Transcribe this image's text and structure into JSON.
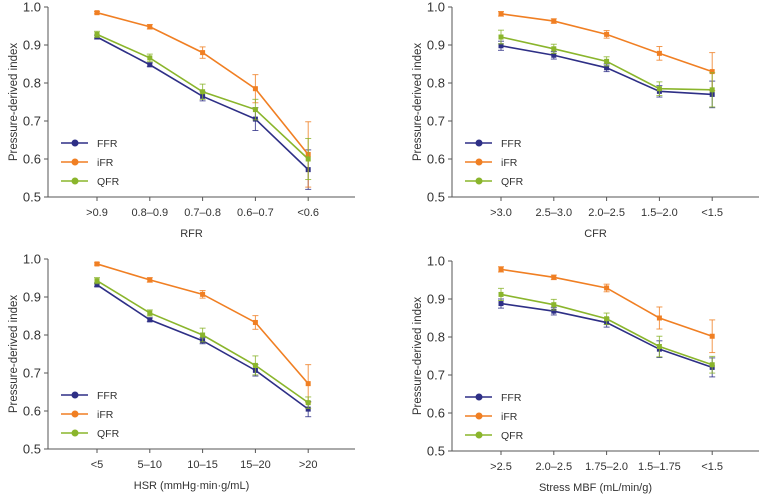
{
  "chart_data": [
    {
      "type": "line",
      "xlabel": "RFR",
      "ylabel": "Pressure-derived index",
      "ylim": [
        0.5,
        1.0
      ],
      "yticks": [
        "0.5",
        "0.6",
        "0.7",
        "0.8",
        "0.9",
        "1.0"
      ],
      "categories": [
        ">0.9",
        "0.8–0.9",
        "0.7–0.8",
        "0.6–0.7",
        "<0.6"
      ],
      "legend": "bottom-left",
      "series": [
        {
          "name": "FFR",
          "values": [
            0.921,
            0.848,
            0.765,
            0.705,
            0.572
          ],
          "errors": [
            0.005,
            0.005,
            0.012,
            0.03,
            0.052
          ]
        },
        {
          "name": "iFR",
          "values": [
            0.985,
            0.948,
            0.88,
            0.785,
            0.612
          ],
          "errors": [
            0.003,
            0.006,
            0.015,
            0.037,
            0.086
          ]
        },
        {
          "name": "QFR",
          "values": [
            0.928,
            0.866,
            0.777,
            0.73,
            0.6
          ],
          "errors": [
            0.008,
            0.01,
            0.02,
            0.027,
            0.054
          ]
        }
      ]
    },
    {
      "type": "line",
      "xlabel": "CFR",
      "ylabel": "Pressure-derived index",
      "ylim": [
        0.5,
        1.0
      ],
      "yticks": [
        "0.5",
        "0.6",
        "0.7",
        "0.8",
        "0.9",
        "1.0"
      ],
      "categories": [
        ">3.0",
        "2.5–3.0",
        "2.0–2.5",
        "1.5–2.0",
        "<1.5"
      ],
      "legend": "bottom-left",
      "series": [
        {
          "name": "FFR",
          "values": [
            0.898,
            0.873,
            0.84,
            0.778,
            0.77
          ],
          "errors": [
            0.012,
            0.01,
            0.01,
            0.015,
            0.035
          ]
        },
        {
          "name": "iFR",
          "values": [
            0.982,
            0.963,
            0.928,
            0.878,
            0.83
          ],
          "errors": [
            0.006,
            0.006,
            0.01,
            0.018,
            0.05
          ]
        },
        {
          "name": "QFR",
          "values": [
            0.921,
            0.89,
            0.857,
            0.785,
            0.782
          ],
          "errors": [
            0.018,
            0.012,
            0.012,
            0.018,
            0.045
          ]
        }
      ]
    },
    {
      "type": "line",
      "xlabel": "HSR (mmHg·min·g/mL)",
      "ylabel": "Pressure-derived index",
      "ylim": [
        0.5,
        1.0
      ],
      "yticks": [
        "0.5",
        "0.6",
        "0.7",
        "0.8",
        "0.9",
        "1.0"
      ],
      "categories": [
        "<5",
        "5–10",
        "10–15",
        "15–20",
        ">20"
      ],
      "legend": "bottom-left",
      "series": [
        {
          "name": "FFR",
          "values": [
            0.932,
            0.84,
            0.785,
            0.707,
            0.605
          ],
          "errors": [
            0.005,
            0.005,
            0.008,
            0.015,
            0.02
          ]
        },
        {
          "name": "iFR",
          "values": [
            0.987,
            0.945,
            0.907,
            0.833,
            0.672
          ],
          "errors": [
            0.003,
            0.006,
            0.01,
            0.018,
            0.05
          ]
        },
        {
          "name": "QFR",
          "values": [
            0.943,
            0.858,
            0.8,
            0.72,
            0.622
          ],
          "errors": [
            0.008,
            0.008,
            0.018,
            0.025,
            0.015
          ]
        }
      ]
    },
    {
      "type": "line",
      "xlabel": "Stress MBF (mL/min/g)",
      "ylabel": "Pressure-derived index",
      "ylim": [
        0.5,
        1.0
      ],
      "yticks": [
        "0.5",
        "0.6",
        "0.7",
        "0.8",
        "0.9",
        "1.0"
      ],
      "categories": [
        ">2.5",
        "2.0–2.5",
        "1.75–2.0",
        "1.5–1.75",
        "<1.5"
      ],
      "legend": "bottom-left",
      "series": [
        {
          "name": "FFR",
          "values": [
            0.888,
            0.868,
            0.838,
            0.768,
            0.72
          ],
          "errors": [
            0.012,
            0.01,
            0.012,
            0.022,
            0.025
          ]
        },
        {
          "name": "iFR",
          "values": [
            0.978,
            0.957,
            0.929,
            0.85,
            0.802
          ],
          "errors": [
            0.007,
            0.006,
            0.01,
            0.029,
            0.043
          ]
        },
        {
          "name": "QFR",
          "values": [
            0.912,
            0.885,
            0.848,
            0.775,
            0.727
          ],
          "errors": [
            0.016,
            0.014,
            0.015,
            0.027,
            0.022
          ]
        }
      ]
    }
  ],
  "colors": {
    "FFR": "#2e2f86",
    "iFR": "#f07f23",
    "QFR": "#8ab52c",
    "axis": "#555555"
  }
}
